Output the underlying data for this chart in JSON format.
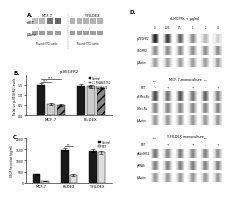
{
  "background_color": "#ffffff",
  "panel_a": {
    "label": "A.",
    "mcf7_label": "MCF-7",
    "fildex_label": "Y-FILDEX",
    "row1_label": "cMET",
    "row2_label": "β-Actin",
    "xlabel1": "Pound (ITC) units",
    "xlabel2": "Pound (ITC) units",
    "mcf7_bands_row1": [
      0.25,
      0.28,
      0.55,
      0.6
    ],
    "mcf7_bands_row2": [
      0.38,
      0.38,
      0.38,
      0.38
    ],
    "fildex_bands_row1": [
      0.3,
      0.3,
      0.3,
      0.3,
      0.3
    ],
    "fildex_bands_row2": [
      0.38,
      0.38,
      0.38,
      0.38,
      0.38
    ]
  },
  "panel_b": {
    "label": "B.",
    "title": "p-VEGFR2",
    "groups": [
      "MCF-7",
      "FILDEX"
    ],
    "conditions": [
      "Control",
      "L1 PHA665752",
      "L1 SU11274"
    ],
    "values": [
      [
        1.5,
        0.55,
        0.5
      ],
      [
        1.45,
        1.42,
        1.35
      ]
    ],
    "errors": [
      [
        0.07,
        0.04,
        0.04
      ],
      [
        0.06,
        0.06,
        0.05
      ]
    ],
    "bar_colors": [
      "#1a1a1a",
      "#cccccc",
      "#888888"
    ],
    "bar_hatches": [
      "",
      "",
      "////"
    ],
    "ylim": [
      0,
      2.0
    ],
    "yticks": [
      0.0,
      0.5,
      1.0,
      1.5
    ],
    "ylabel": "Relative p-VEGFR2 levels"
  },
  "panel_c": {
    "label": "C.",
    "groups": [
      "MCF-7",
      "FILDEX",
      "Y-FILDEX"
    ],
    "conditions": [
      "Control",
      "MET"
    ],
    "values": [
      [
        380,
        1480,
        1430
      ],
      [
        75,
        330,
        1370
      ]
    ],
    "errors": [
      [
        28,
        75,
        68
      ],
      [
        12,
        38,
        60
      ]
    ],
    "bar_colors": [
      "#1a1a1a",
      "#dddddd"
    ],
    "ylim": [
      0,
      2000
    ],
    "yticks": [
      0,
      500,
      1000,
      1500,
      2000
    ],
    "ylabel": "VEGF Secretion (pg/ml)"
  },
  "panel_d": {
    "label": "D.",
    "top_title": "d-HGFRs + µg/ml",
    "top_doses": [
      "0",
      "0.25",
      "0.5",
      "1",
      "2",
      "4"
    ],
    "top_rows": [
      {
        "label": "pVEGFR2",
        "intensities": [
          0.88,
          0.78,
          0.62,
          0.45,
          0.28,
          0.18
        ]
      },
      {
        "label": "VEGFR2",
        "intensities": [
          0.45,
          0.45,
          0.45,
          0.45,
          0.45,
          0.45
        ]
      },
      {
        "label": "β-Actin",
        "intensities": [
          0.38,
          0.38,
          0.38,
          0.38,
          0.38,
          0.38
        ]
      }
    ],
    "mid_title": "MCF-7 monoculture",
    "mid_met": [
      "MET",
      "-",
      "+",
      "-",
      "+",
      "-",
      "+"
    ],
    "mid_doses_label": [
      "",
      "Ctrl",
      "",
      "1",
      "",
      "1.5",
      ""
    ],
    "mid_rows": [
      {
        "label": "pCMet-Pa",
        "intensities": [
          0.72,
          0.55,
          0.67,
          0.52,
          0.62,
          0.5
        ]
      },
      {
        "label": "cMet-Pa",
        "intensities": [
          0.48,
          0.48,
          0.48,
          0.48,
          0.48,
          0.48
        ]
      },
      {
        "label": "β-Actin",
        "intensities": [
          0.4,
          0.4,
          0.4,
          0.4,
          0.4,
          0.4
        ]
      }
    ],
    "bot_title": "Y-FILDEX monoculture",
    "bot_met": [
      "MET",
      "-",
      "+",
      "-",
      "+",
      "-",
      "+"
    ],
    "bot_doses_label": [
      "",
      "Ctrl",
      "",
      "1",
      "",
      "1.5",
      ""
    ],
    "bot_rows": [
      {
        "label": "pAkt/HIF2",
        "intensities": [
          0.55,
          0.48,
          0.52,
          0.47,
          0.5,
          0.44
        ]
      },
      {
        "label": "pPRAS",
        "intensities": [
          0.5,
          0.5,
          0.5,
          0.5,
          0.5,
          0.5
        ]
      },
      {
        "label": "β-Actin",
        "intensities": [
          0.4,
          0.4,
          0.4,
          0.4,
          0.4,
          0.4
        ]
      }
    ]
  }
}
